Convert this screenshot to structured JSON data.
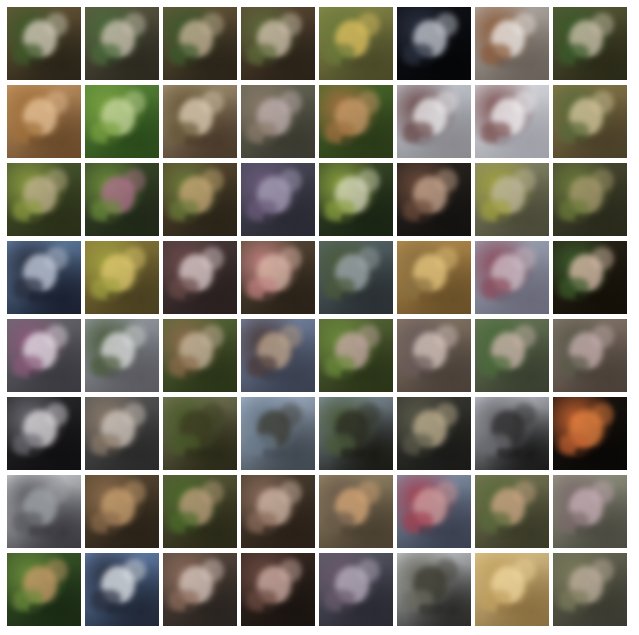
{
  "grid": {
    "rows": 8,
    "cols": 8,
    "tiles": [
      {
        "bg": "#6b5a3a",
        "fg": "#d8cfc0",
        "acc": "#3f5a2a",
        "dark": "#2a2418"
      },
      {
        "bg": "#5e5a44",
        "fg": "#cfc5b6",
        "acc": "#4a6a3a",
        "dark": "#2c2a20"
      },
      {
        "bg": "#6a5a3c",
        "fg": "#c9b59a",
        "acc": "#3d5a2c",
        "dark": "#2a2419"
      },
      {
        "bg": "#5c4a34",
        "fg": "#d2c3b0",
        "acc": "#5d6a3a",
        "dark": "#2a2218"
      },
      {
        "bg": "#8a8a4a",
        "fg": "#e0c060",
        "acc": "#6a7a3a",
        "dark": "#4a4a28"
      },
      {
        "bg": "#101218",
        "fg": "#c8ccd4",
        "acc": "#2a3040",
        "dark": "#050608"
      },
      {
        "bg": "#b8b2ac",
        "fg": "#f0eeec",
        "acc": "#8a5a3a",
        "dark": "#6a625a"
      },
      {
        "bg": "#5a5a38",
        "fg": "#d0c4b0",
        "acc": "#3a5a2a",
        "dark": "#2a2a18"
      },
      {
        "bg": "#c89a6a",
        "fg": "#e8c49a",
        "acc": "#a0703a",
        "dark": "#6a4a2a"
      },
      {
        "bg": "#5a8a3a",
        "fg": "#c8d8a0",
        "acc": "#7aa040",
        "dark": "#2a4a1a"
      },
      {
        "bg": "#a89878",
        "fg": "#e0d0b8",
        "acc": "#6a5a3a",
        "dark": "#4a3a2a"
      },
      {
        "bg": "#6a6a58",
        "fg": "#c0b0b0",
        "acc": "#8a7a6a",
        "dark": "#3a3a30"
      },
      {
        "bg": "#4a6a2a",
        "fg": "#c89a6a",
        "acc": "#a07040",
        "dark": "#2a3a18"
      },
      {
        "bg": "#c8ccd4",
        "fg": "#f0f0f2",
        "acc": "#6a4a4a",
        "dark": "#8a8a90"
      },
      {
        "bg": "#dcdee2",
        "fg": "#f6f6f8",
        "acc": "#7a5050",
        "dark": "#a0a0a8"
      },
      {
        "bg": "#8a7a4a",
        "fg": "#d8c8a0",
        "acc": "#5a6a3a",
        "dark": "#4a4028"
      },
      {
        "bg": "#4a5a30",
        "fg": "#c0b090",
        "acc": "#8a9a40",
        "dark": "#2a3018"
      },
      {
        "bg": "#3a4a2a",
        "fg": "#b07090",
        "acc": "#6a8a3a",
        "dark": "#202818"
      },
      {
        "bg": "#5a4a30",
        "fg": "#c8a878",
        "acc": "#6a7a3a",
        "dark": "#2a2418"
      },
      {
        "bg": "#4a4a5a",
        "fg": "#a8a0b8",
        "acc": "#6a5a7a",
        "dark": "#2a2a34"
      },
      {
        "bg": "#3a4a28",
        "fg": "#d8d8c0",
        "acc": "#8aa040",
        "dark": "#1a2414"
      },
      {
        "bg": "#2a2420",
        "fg": "#c8a890",
        "acc": "#6a4a3a",
        "dark": "#141210"
      },
      {
        "bg": "#8a8a6a",
        "fg": "#c0b8a0",
        "acc": "#a0a040",
        "dark": "#4a4a38"
      },
      {
        "bg": "#4a4a32",
        "fg": "#a89a70",
        "acc": "#6a7a3a",
        "dark": "#2a2a1c"
      },
      {
        "bg": "#6a8ab0",
        "fg": "#c8d0e0",
        "acc": "#2a3040",
        "dark": "#1a2030"
      },
      {
        "bg": "#8a7a3a",
        "fg": "#e0c870",
        "acc": "#a0a040",
        "dark": "#4a4020"
      },
      {
        "bg": "#4a3a3a",
        "fg": "#e0d0d0",
        "acc": "#6a4a4a",
        "dark": "#2a2020"
      },
      {
        "bg": "#5a4a38",
        "fg": "#d8b8a8",
        "acc": "#c08080",
        "dark": "#2a2218"
      },
      {
        "bg": "#5a6a6a",
        "fg": "#a0a8b0",
        "acc": "#4a5a3a",
        "dark": "#2a3034"
      },
      {
        "bg": "#b89050",
        "fg": "#e8c880",
        "acc": "#8a7040",
        "dark": "#6a5028"
      },
      {
        "bg": "#a0a8b8",
        "fg": "#d0c0c8",
        "acc": "#8a4a5a",
        "dark": "#6a6a7a"
      },
      {
        "bg": "#2a2418",
        "fg": "#e0c0b0",
        "acc": "#3a5a2a",
        "dark": "#141008"
      },
      {
        "bg": "#6a6a70",
        "fg": "#e8e0e8",
        "acc": "#8a5a7a",
        "dark": "#3a3a40"
      },
      {
        "bg": "#9aa0a8",
        "fg": "#e0e0e4",
        "acc": "#4a5a3a",
        "dark": "#5a5a60"
      },
      {
        "bg": "#5a6a3a",
        "fg": "#c8b8a0",
        "acc": "#8a6a4a",
        "dark": "#2a3418"
      },
      {
        "bg": "#7a8aa8",
        "fg": "#c0a890",
        "acc": "#4a3a3a",
        "dark": "#3a4050"
      },
      {
        "bg": "#5a6a3a",
        "fg": "#c8a8a8",
        "acc": "#6a8a3a",
        "dark": "#2a3418"
      },
      {
        "bg": "#8a7a6a",
        "fg": "#d8c8c0",
        "acc": "#6a5a5a",
        "dark": "#4a4038"
      },
      {
        "bg": "#6a7a5a",
        "fg": "#d0b8b0",
        "acc": "#4a6a3a",
        "dark": "#3a4030"
      },
      {
        "bg": "#8a7a70",
        "fg": "#c8b0b0",
        "acc": "#5a5a4a",
        "dark": "#4a4038"
      },
      {
        "bg": "#2a2a2e",
        "fg": "#e0dce0",
        "acc": "#6a6a70",
        "dark": "#101012"
      },
      {
        "bg": "#5a5a5a",
        "fg": "#d0c8c0",
        "acc": "#8a7a6a",
        "dark": "#2a2a2a"
      },
      {
        "bg": "#7a7a5a",
        "fg": "#3a3a20",
        "acc": "#4a5a2a",
        "dark": "#2a2a18"
      },
      {
        "bg": "#a8b8d0",
        "fg": "#3a3a30",
        "acc": "#6a7a8a",
        "dark": "#404850"
      },
      {
        "bg": "#8a9aa8",
        "fg": "#2a2a20",
        "acc": "#4a5a3a",
        "dark": "#1a1a14"
      },
      {
        "bg": "#3a3a34",
        "fg": "#c0b090",
        "acc": "#5a5a4a",
        "dark": "#1a1a18"
      },
      {
        "bg": "#c8ccd4",
        "fg": "#2a2a2a",
        "acc": "#6a6a70",
        "dark": "#1a1a1a"
      },
      {
        "bg": "#1a1410",
        "fg": "#e08040",
        "acc": "#c06030",
        "dark": "#0a0806"
      },
      {
        "bg": "#d8dadc",
        "fg": "#a0a4a8",
        "acc": "#5a5a60",
        "dark": "#3a3a40"
      },
      {
        "bg": "#5a4a34",
        "fg": "#c8a070",
        "acc": "#8a6a4a",
        "dark": "#2a2218"
      },
      {
        "bg": "#5a5a3a",
        "fg": "#c0a080",
        "acc": "#4a6a2a",
        "dark": "#2a2a18"
      },
      {
        "bg": "#4a4030",
        "fg": "#d0b8a8",
        "acc": "#8a6a5a",
        "dark": "#2a2018"
      },
      {
        "bg": "#9a8a6a",
        "fg": "#d8a878",
        "acc": "#6a5a4a",
        "dark": "#4a4030"
      },
      {
        "bg": "#8a9ab0",
        "fg": "#d0a0a0",
        "acc": "#a04050",
        "dark": "#3a4050"
      },
      {
        "bg": "#7a7a58",
        "fg": "#d0a888",
        "acc": "#5a6a3a",
        "dark": "#3a3a28"
      },
      {
        "bg": "#9a9a88",
        "fg": "#c8b0b8",
        "acc": "#7a6a6a",
        "dark": "#4a4a40"
      },
      {
        "bg": "#3a5a2a",
        "fg": "#c89a6a",
        "acc": "#6a8a3a",
        "dark": "#1a2a14"
      },
      {
        "bg": "#6a8ab8",
        "fg": "#e8ecf0",
        "acc": "#2a3040",
        "dark": "#202838"
      },
      {
        "bg": "#5a4a40",
        "fg": "#d8c8c0",
        "acc": "#8a6a5a",
        "dark": "#2a2420"
      },
      {
        "bg": "#3a2a24",
        "fg": "#d0b0a8",
        "acc": "#6a4a40",
        "dark": "#1a1410"
      },
      {
        "bg": "#5a5a68",
        "fg": "#b8b0c0",
        "acc": "#6a5a6a",
        "dark": "#2a2a34"
      },
      {
        "bg": "#d0d4d8",
        "fg": "#3a3a30",
        "acc": "#6a6a60",
        "dark": "#2a2a28"
      },
      {
        "bg": "#e0c890",
        "fg": "#f0d8a0",
        "acc": "#c0a060",
        "dark": "#8a7040"
      },
      {
        "bg": "#6a6a58",
        "fg": "#c0b0a0",
        "acc": "#7a7a5a",
        "dark": "#3a3a30"
      }
    ]
  }
}
